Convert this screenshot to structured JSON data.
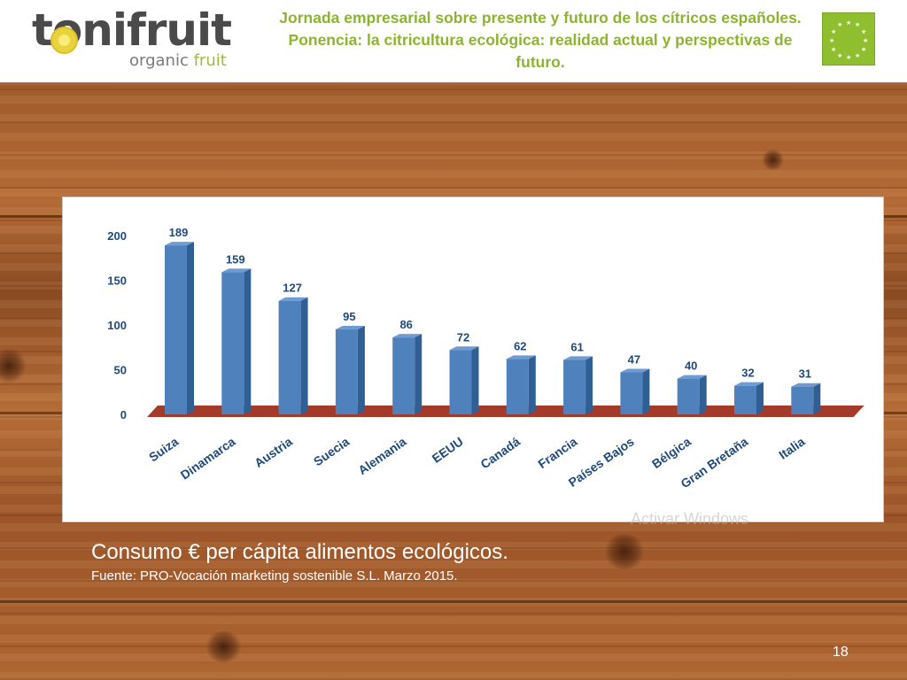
{
  "header": {
    "logo_text_main": "tonifruit",
    "logo_text_sub1": "organic",
    "logo_text_sub2": "fruit",
    "title": "Jornada empresarial sobre presente y futuro de los cítricos españoles. Ponencia: la citricultura ecológica: realidad actual y perspectivas de futuro.",
    "eu_logo": "eu-organic-leaf-logo"
  },
  "caption": {
    "title": "Consumo  € per cápita alimentos ecológicos.",
    "source": "Fuente: PRO-Vocación marketing sostenible S.L. Marzo 2015."
  },
  "watermark": "Activar Windows",
  "page_number": "18",
  "colors": {
    "bar": "#4f81bd",
    "bar_side": "#2f5f93",
    "floor": "#a33a2a",
    "title_green": "#8cb42e",
    "axis_text": "#1f497d"
  },
  "chart_data": {
    "type": "bar",
    "categories": [
      "Suiza",
      "Dinamarca",
      "Austria",
      "Suecia",
      "Alemania",
      "EEUU",
      "Canadá",
      "Francia",
      "Países Bajos",
      "Bélgica",
      "Gran Bretaña",
      "Italia"
    ],
    "values": [
      189,
      159,
      127,
      95,
      86,
      72,
      62,
      61,
      47,
      40,
      32,
      31
    ],
    "data_labels": [
      "189",
      "159",
      "127",
      "95",
      "86",
      "72",
      "62",
      "61",
      "47",
      "40",
      "32",
      "31"
    ],
    "yticks": [
      "0",
      "50",
      "100",
      "150",
      "200"
    ],
    "ylim": [
      0,
      200
    ],
    "title": "",
    "xlabel": "",
    "ylabel": "",
    "grid": false,
    "legend": "none",
    "style": "3d"
  }
}
